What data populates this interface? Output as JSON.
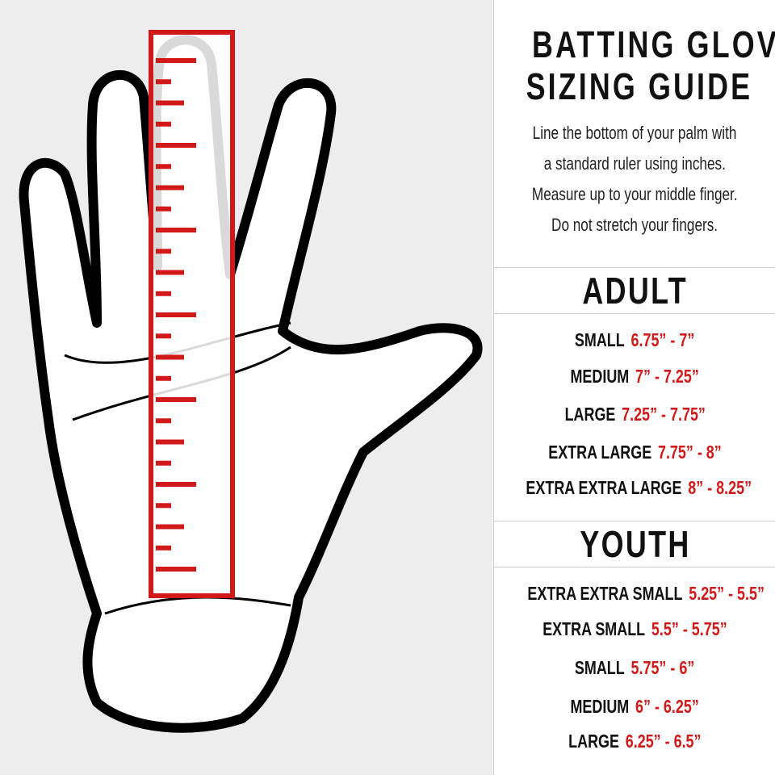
{
  "title_lines": [
    "BATTING GLOVE",
    "SIZING GUIDE"
  ],
  "instructions": [
    "Line the bottom of your palm with",
    "a standard ruler using inches.",
    "Measure up to your middle finger.",
    "Do not stretch your fingers."
  ],
  "adult": {
    "heading": "ADULT",
    "sizes": [
      {
        "label": "SMALL",
        "range": "6.75” - 7”"
      },
      {
        "label": "MEDIUM",
        "range": "7” - 7.25”"
      },
      {
        "label": "LARGE",
        "range": "7.25” - 7.75”"
      },
      {
        "label": "EXTRA LARGE",
        "range": "7.75” - 8”"
      },
      {
        "label": "EXTRA EXTRA LARGE",
        "range": "8” - 8.25”"
      }
    ]
  },
  "youth": {
    "heading": "YOUTH",
    "sizes": [
      {
        "label": "EXTRA EXTRA SMALL",
        "range": "5.25” - 5.5”"
      },
      {
        "label": "EXTRA SMALL",
        "range": "5.5” - 5.75”"
      },
      {
        "label": "SMALL",
        "range": "5.75” - 6”"
      },
      {
        "label": "MEDIUM",
        "range": "6” - 6.25”"
      },
      {
        "label": "LARGE",
        "range": "6.25” - 6.5”"
      }
    ]
  },
  "colors": {
    "accent": "#d21919",
    "text": "#111111",
    "left_bg": "#ededed"
  }
}
